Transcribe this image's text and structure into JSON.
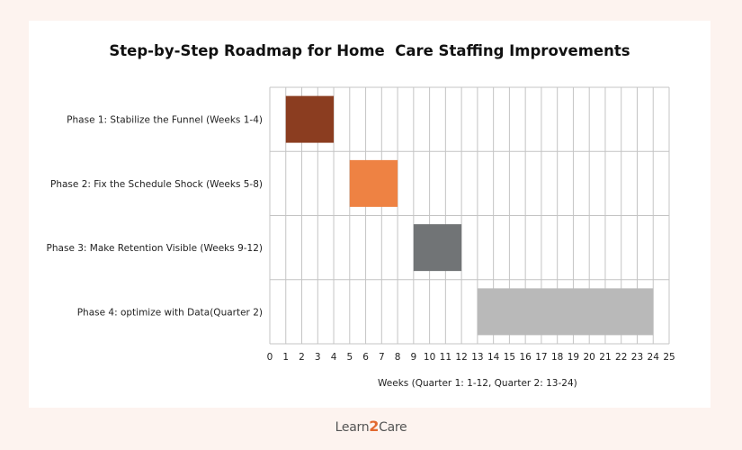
{
  "chart_data": {
    "type": "gantt",
    "title": "Step-by-Step Roadmap for Home  Care Staffing Improvements",
    "xlabel": "Weeks (Quarter 1: 1-12, Quarter 2: 13-24)",
    "xlim": [
      0,
      25
    ],
    "xticks": [
      0,
      1,
      2,
      3,
      4,
      5,
      6,
      7,
      8,
      9,
      10,
      11,
      12,
      13,
      14,
      15,
      16,
      17,
      18,
      19,
      20,
      21,
      22,
      23,
      24,
      25
    ],
    "grid": true,
    "tasks": [
      {
        "label": "Phase 1: Stabilize the Funnel (Weeks 1-4)",
        "start": 1,
        "end": 4,
        "color": "#8b3d20"
      },
      {
        "label": "Phase 2: Fix the Schedule Shock (Weeks 5-8)",
        "start": 5,
        "end": 8,
        "color": "#ee8243"
      },
      {
        "label": "Phase 3: Make Retention Visible (Weeks 9-12)",
        "start": 9,
        "end": 12,
        "color": "#717476"
      },
      {
        "label": "Phase 4: optimize with Data(Quarter 2)",
        "start": 13,
        "end": 24,
        "color": "#b9b9b9"
      }
    ]
  },
  "logo": {
    "before": "Learn",
    "mid": "2",
    "after": "Care"
  }
}
